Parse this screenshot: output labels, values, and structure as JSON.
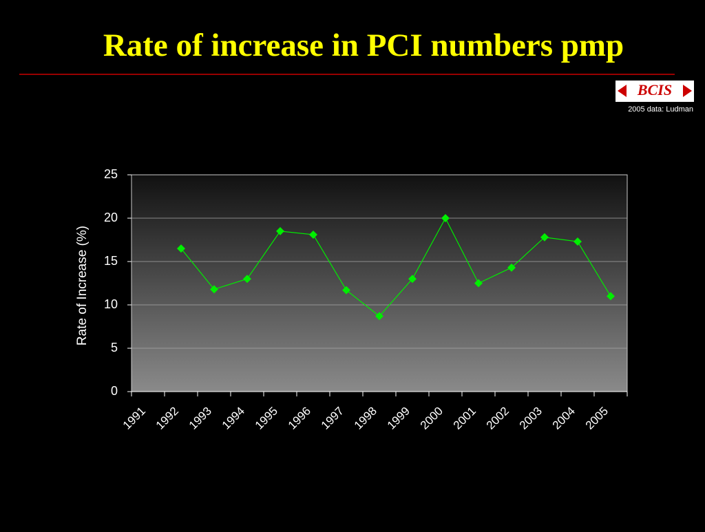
{
  "logo": "BCIS",
  "chart_data": {
    "type": "line",
    "title": "Rate of increase in PCI numbers pmp",
    "note": "2005 data: Ludman",
    "y_label": "Rate of Increase (%)",
    "categories": [
      "1991",
      "1992",
      "1993",
      "1994",
      "1995",
      "1996",
      "1997",
      "1998",
      "1999",
      "2000",
      "2001",
      "2002",
      "2003",
      "2004",
      "2005"
    ],
    "series": [
      {
        "name": "Rate of increase",
        "color": "#00ee00",
        "values": [
          null,
          16.5,
          11.8,
          13,
          18.5,
          18.1,
          11.7,
          8.7,
          13,
          20,
          12.5,
          14.3,
          17.8,
          17.3,
          11
        ]
      }
    ],
    "ylim": [
      0,
      25
    ],
    "yticks": [
      0,
      5,
      10,
      15,
      20,
      25
    ],
    "grid": true
  }
}
